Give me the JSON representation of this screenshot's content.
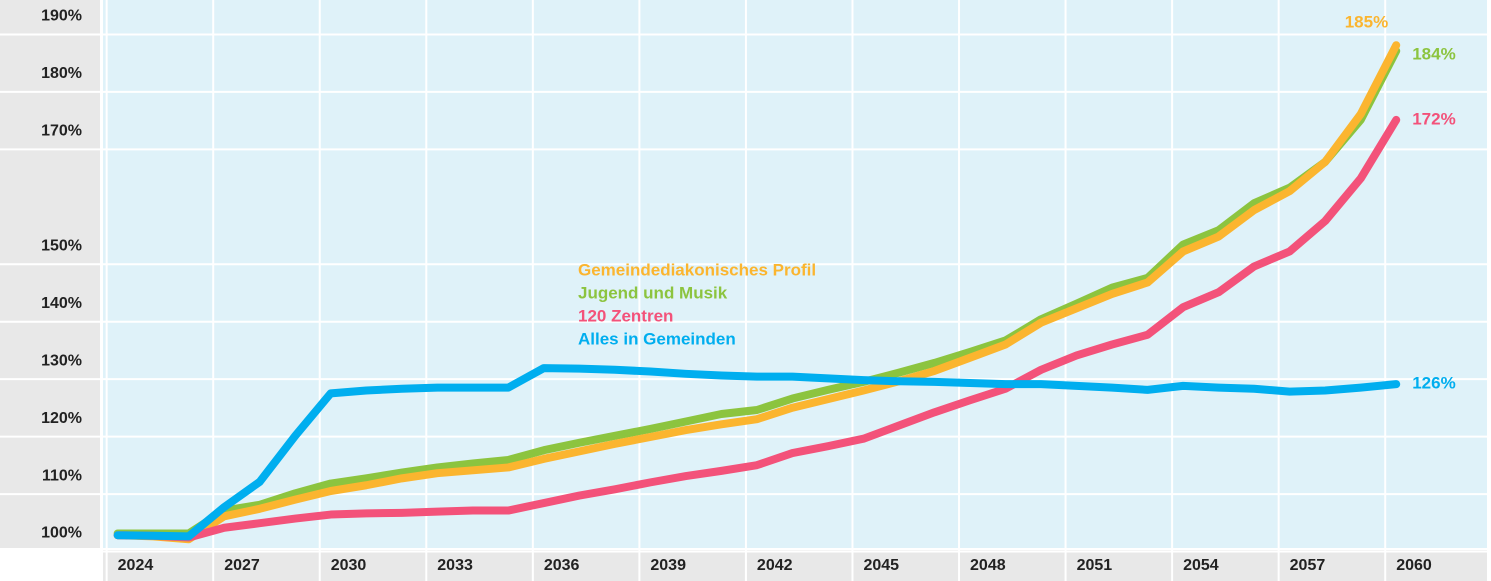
{
  "chart_data": {
    "type": "line",
    "x": [
      2024,
      2025,
      2026,
      2027,
      2028,
      2029,
      2030,
      2031,
      2032,
      2033,
      2034,
      2035,
      2036,
      2037,
      2038,
      2039,
      2040,
      2041,
      2042,
      2043,
      2044,
      2045,
      2046,
      2047,
      2048,
      2049,
      2050,
      2051,
      2052,
      2053,
      2054,
      2055,
      2056,
      2057,
      2058,
      2059,
      2060
    ],
    "xlim": [
      2023.7,
      2062.5
    ],
    "xticks": [
      2024,
      2027,
      2030,
      2033,
      2036,
      2039,
      2042,
      2045,
      2048,
      2051,
      2054,
      2057,
      2060
    ],
    "ylim": [
      98,
      192
    ],
    "yticks": [
      {
        "value": 100,
        "label": "100%"
      },
      {
        "value": 110,
        "label": "110%"
      },
      {
        "value": 120,
        "label": "120%"
      },
      {
        "value": 130,
        "label": "130%"
      },
      {
        "value": 140,
        "label": "140%"
      },
      {
        "value": 150,
        "label": "150%"
      },
      {
        "value": 170,
        "label": "170%"
      },
      {
        "value": 180,
        "label": "180%"
      },
      {
        "value": 190,
        "label": "190%"
      }
    ],
    "grid": true,
    "series": [
      {
        "name": "Gemeindediakonisches Profil",
        "color": "#fbb52f",
        "end_label": "185%",
        "values": [
          99.7,
          99.5,
          99.0,
          103.0,
          104.3,
          105.9,
          107.4,
          108.4,
          109.6,
          110.5,
          111.0,
          111.5,
          113.0,
          114.3,
          115.6,
          116.8,
          118.0,
          119.0,
          119.9,
          121.9,
          123.4,
          124.9,
          126.5,
          128.3,
          130.6,
          132.9,
          136.7,
          139.2,
          141.7,
          143.7,
          149.1,
          151.7,
          156.3,
          159.6,
          164.7,
          173.0,
          185
        ]
      },
      {
        "name": "Jugend und Musik",
        "color": "#8cc43f",
        "end_label": "184%",
        "values": [
          100,
          100,
          100,
          104,
          105,
          107,
          108.7,
          109.6,
          110.6,
          111.5,
          112.2,
          112.8,
          114.5,
          115.8,
          117,
          118.2,
          119.5,
          120.8,
          121.5,
          123.5,
          125,
          126.4,
          128,
          129.7,
          131.6,
          133.6,
          137.3,
          140,
          142.8,
          144.5,
          150.3,
          152.8,
          157.5,
          160.2,
          164.7,
          172,
          184
        ]
      },
      {
        "name": "120 Zentren",
        "color": "#f3527a",
        "end_label": "172%",
        "values": [
          99.7,
          99.6,
          99.3,
          101.0,
          101.8,
          102.6,
          103.3,
          103.5,
          103.6,
          103.8,
          104.0,
          104.0,
          105.3,
          106.6,
          107.7,
          108.9,
          110.0,
          110.9,
          111.9,
          114.0,
          115.2,
          116.5,
          118.8,
          121.1,
          123.2,
          125.2,
          128.5,
          131.0,
          132.9,
          134.6,
          139.4,
          142.0,
          146.5,
          149.1,
          154.4,
          161.8,
          172
        ]
      },
      {
        "name": "Alles in Gemeinden",
        "color": "#00aeef",
        "end_label": "126%",
        "values": [
          99.7,
          99.6,
          99.5,
          104.6,
          109,
          117,
          124.4,
          124.9,
          125.2,
          125.4,
          125.4,
          125.4,
          128.8,
          128.7,
          128.5,
          128.2,
          127.8,
          127.5,
          127.3,
          127.3,
          127,
          126.7,
          126.5,
          126.4,
          126.2,
          126,
          126,
          125.7,
          125.4,
          125,
          125.7,
          125.4,
          125.2,
          124.7,
          124.9,
          125.4,
          126
        ]
      }
    ]
  }
}
